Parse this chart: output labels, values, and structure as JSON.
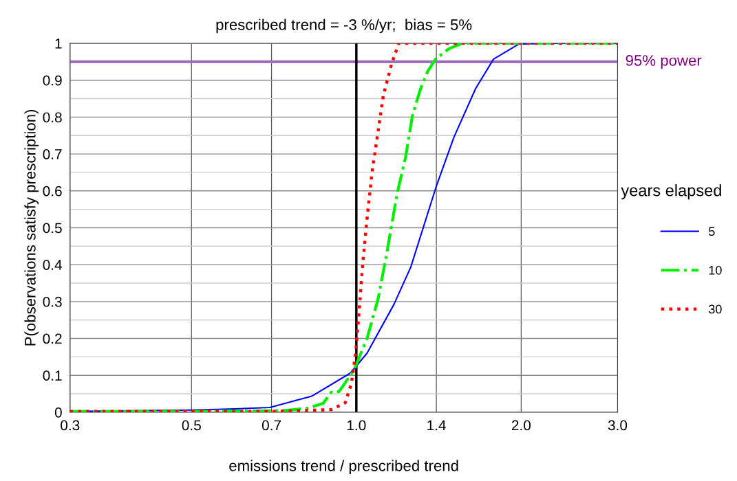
{
  "chart_data": {
    "type": "line",
    "title": "prescribed trend = -3 %/yr;  bias = 5%",
    "xlabel": "emissions trend / prescribed trend",
    "ylabel": "P(observations satisfy prescription)",
    "legend_title": "years elapsed",
    "log": "x",
    "xlim": [
      0.3,
      3.0
    ],
    "ylim": [
      0,
      1
    ],
    "xticks": [
      0.3,
      0.5,
      0.7,
      {
        "value": 1.0,
        "label": "1.0"
      },
      1.4,
      {
        "value": 2.0,
        "label": "2.0"
      },
      {
        "value": 3.0,
        "label": "3.0"
      }
    ],
    "yticks": [
      0,
      0.1,
      0.2,
      0.3,
      0.4,
      0.5,
      0.6,
      0.7,
      0.8,
      0.9,
      1
    ],
    "grid": true,
    "legend": "right",
    "ref_lines": [
      {
        "axis": "y",
        "value": 0.95,
        "label": "95% power",
        "color": "#a070c0"
      },
      {
        "axis": "x",
        "value": 1.0,
        "color": "#000000"
      }
    ],
    "series": [
      {
        "name": "5",
        "color": "#0000ff",
        "line_style": "solid",
        "x": [
          0.3,
          0.5,
          0.6,
          0.695,
          0.827,
          0.837,
          0.975,
          1.046,
          1.171,
          1.257,
          1.4,
          1.507,
          1.651,
          1.78,
          1.98,
          2.3,
          3.0
        ],
        "values": [
          0.002,
          0.006,
          0.009,
          0.013,
          0.043,
          0.047,
          0.106,
          0.16,
          0.292,
          0.393,
          0.613,
          0.745,
          0.877,
          0.957,
          0.998,
          1.0,
          1.0
        ]
      },
      {
        "name": "10",
        "color": "#00ee00",
        "line_style": "dashdot",
        "x": [
          0.3,
          0.5,
          0.695,
          0.742,
          0.81,
          0.87,
          0.9,
          0.93,
          0.99,
          1.046,
          1.095,
          1.135,
          1.187,
          1.23,
          1.266,
          1.31,
          1.35,
          1.395,
          1.475,
          1.56,
          2.0,
          3.0
        ],
        "values": [
          0.002,
          0.002,
          0.004,
          0.005,
          0.01,
          0.024,
          0.054,
          0.056,
          0.114,
          0.2,
          0.305,
          0.426,
          0.592,
          0.691,
          0.804,
          0.877,
          0.924,
          0.957,
          0.985,
          1.0,
          1.0,
          1.0
        ]
      },
      {
        "name": "30",
        "color": "#ff0000",
        "line_style": "dotted",
        "x": [
          0.3,
          0.5,
          0.7,
          0.9,
          0.955,
          0.98,
          0.997,
          1.01,
          1.026,
          1.046,
          1.07,
          1.095,
          1.12,
          1.16,
          1.195,
          1.5,
          2.0,
          3.0
        ],
        "values": [
          0.002,
          0.002,
          0.002,
          0.007,
          0.026,
          0.08,
          0.16,
          0.259,
          0.393,
          0.525,
          0.659,
          0.758,
          0.858,
          0.944,
          1.0,
          1.0,
          1.0,
          1.0
        ]
      }
    ]
  }
}
